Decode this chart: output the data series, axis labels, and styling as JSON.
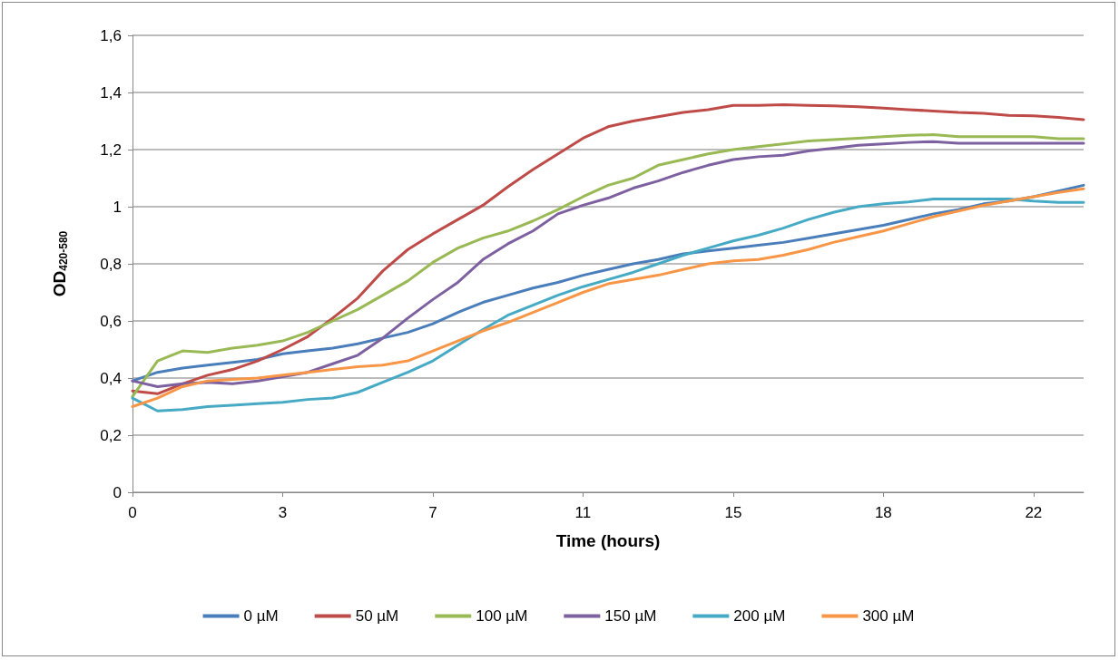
{
  "chart_data": {
    "type": "line",
    "xlabel": "Time (hours)",
    "ylabel": "OD$_{420-580}$",
    "categories": [
      "0",
      null,
      null,
      null,
      null,
      null,
      "3",
      null,
      null,
      null,
      null,
      null,
      "7",
      null,
      null,
      null,
      null,
      null,
      "11",
      null,
      null,
      null,
      null,
      null,
      "15",
      null,
      null,
      null,
      null,
      null,
      "18",
      null,
      null,
      null,
      null,
      null,
      "22",
      null,
      null
    ],
    "series": [
      {
        "name": "0 µM",
        "color": "#4a7ebb",
        "values": [
          0.39,
          0.42,
          0.435,
          0.445,
          0.455,
          0.465,
          0.485,
          0.495,
          0.505,
          0.52,
          0.54,
          0.56,
          0.59,
          0.63,
          0.665,
          0.69,
          0.715,
          0.735,
          0.76,
          0.78,
          0.8,
          0.815,
          0.835,
          0.845,
          0.855,
          0.865,
          0.875,
          0.89,
          0.905,
          0.92,
          0.935,
          0.955,
          0.975,
          0.99,
          1.01,
          1.02,
          1.035,
          1.055,
          1.075
        ]
      },
      {
        "name": "50 µM",
        "color": "#be4b48",
        "values": [
          0.355,
          0.345,
          0.38,
          0.41,
          0.43,
          0.46,
          0.5,
          0.545,
          0.61,
          0.68,
          0.775,
          0.85,
          0.905,
          0.955,
          1.005,
          1.07,
          1.13,
          1.185,
          1.24,
          1.28,
          1.3,
          1.315,
          1.33,
          1.34,
          1.355,
          1.355,
          1.357,
          1.355,
          1.353,
          1.35,
          1.345,
          1.34,
          1.335,
          1.33,
          1.327,
          1.32,
          1.318,
          1.313,
          1.305
        ]
      },
      {
        "name": "100 µM",
        "color": "#98b954",
        "values": [
          0.335,
          0.46,
          0.495,
          0.49,
          0.505,
          0.515,
          0.53,
          0.56,
          0.6,
          0.64,
          0.69,
          0.74,
          0.805,
          0.855,
          0.89,
          0.915,
          0.95,
          0.99,
          1.035,
          1.075,
          1.1,
          1.145,
          1.165,
          1.185,
          1.2,
          1.21,
          1.22,
          1.23,
          1.235,
          1.24,
          1.245,
          1.25,
          1.252,
          1.245,
          1.245,
          1.245,
          1.245,
          1.238,
          1.238
        ]
      },
      {
        "name": "150 µM",
        "color": "#7d60a0",
        "values": [
          0.39,
          0.37,
          0.38,
          0.385,
          0.38,
          0.39,
          0.405,
          0.42,
          0.45,
          0.48,
          0.54,
          0.61,
          0.675,
          0.735,
          0.815,
          0.87,
          0.915,
          0.975,
          1.005,
          1.03,
          1.065,
          1.09,
          1.12,
          1.145,
          1.165,
          1.175,
          1.18,
          1.195,
          1.205,
          1.215,
          1.22,
          1.225,
          1.228,
          1.222,
          1.222,
          1.222,
          1.222,
          1.222,
          1.222
        ]
      },
      {
        "name": "200 µM",
        "color": "#46aac5",
        "values": [
          0.33,
          0.285,
          0.29,
          0.3,
          0.305,
          0.31,
          0.315,
          0.325,
          0.33,
          0.35,
          0.385,
          0.42,
          0.46,
          0.515,
          0.57,
          0.62,
          0.655,
          0.69,
          0.72,
          0.745,
          0.77,
          0.8,
          0.83,
          0.855,
          0.88,
          0.9,
          0.925,
          0.955,
          0.98,
          1.0,
          1.01,
          1.017,
          1.027,
          1.027,
          1.027,
          1.027,
          1.02,
          1.015,
          1.015
        ]
      },
      {
        "name": "300 µM",
        "color": "#f79646",
        "values": [
          0.3,
          0.33,
          0.37,
          0.39,
          0.395,
          0.4,
          0.41,
          0.42,
          0.43,
          0.44,
          0.445,
          0.46,
          0.495,
          0.53,
          0.565,
          0.595,
          0.63,
          0.665,
          0.7,
          0.73,
          0.745,
          0.76,
          0.78,
          0.8,
          0.81,
          0.815,
          0.83,
          0.85,
          0.875,
          0.895,
          0.915,
          0.94,
          0.965,
          0.985,
          1.005,
          1.02,
          1.035,
          1.05,
          1.063
        ]
      }
    ],
    "ylim": [
      0,
      1.6
    ],
    "yticks": [
      0,
      {
        "value": 0.2,
        "label": "0,2"
      },
      {
        "value": 0.4,
        "label": "0,4"
      },
      {
        "value": 0.6,
        "label": "0,6"
      },
      {
        "value": 0.8,
        "label": "0,8"
      },
      1,
      {
        "value": 1.2,
        "label": "1,2"
      },
      {
        "value": 1.4,
        "label": "1,4"
      },
      {
        "value": 1.6,
        "label": "1,6"
      }
    ],
    "grid": "y",
    "legend": "bottom",
    "marker": "none",
    "line_style": "solid"
  }
}
